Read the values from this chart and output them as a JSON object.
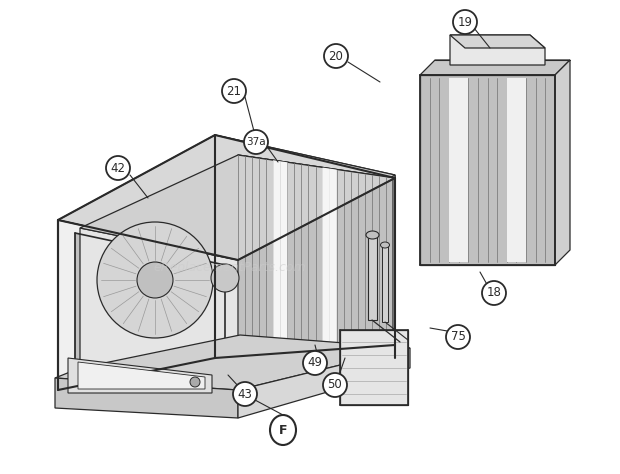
{
  "background_color": "#ffffff",
  "line_color": "#2a2a2a",
  "fill_light": "#f0f0f0",
  "fill_mid": "#d8d8d8",
  "fill_dark": "#b8b8b8",
  "fill_grille": "#c0c0c0",
  "watermark": "eReplacementParts.com",
  "watermark_color": "#cccccc",
  "figsize": [
    6.2,
    4.74
  ],
  "dpi": 100
}
